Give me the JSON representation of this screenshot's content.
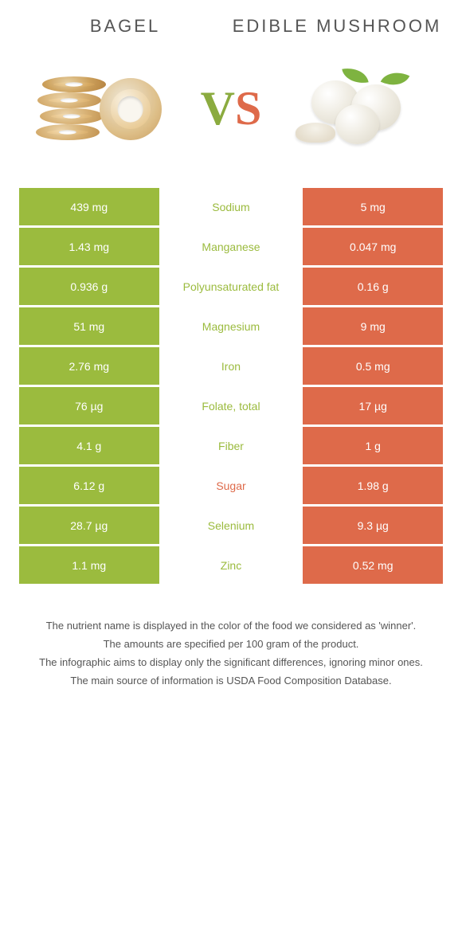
{
  "colors": {
    "left": "#9bbb3e",
    "right": "#de6a4a",
    "background": "#ffffff",
    "text": "#555555"
  },
  "header": {
    "left_title": "Bagel",
    "right_title": "Edible Mushroom",
    "vs_v": "V",
    "vs_s": "S"
  },
  "table": {
    "type": "comparison-table",
    "rows": [
      {
        "left": "439 mg",
        "label": "Sodium",
        "right": "5 mg",
        "winner": "left"
      },
      {
        "left": "1.43 mg",
        "label": "Manganese",
        "right": "0.047 mg",
        "winner": "left"
      },
      {
        "left": "0.936 g",
        "label": "Polyunsaturated fat",
        "right": "0.16 g",
        "winner": "left"
      },
      {
        "left": "51 mg",
        "label": "Magnesium",
        "right": "9 mg",
        "winner": "left"
      },
      {
        "left": "2.76 mg",
        "label": "Iron",
        "right": "0.5 mg",
        "winner": "left"
      },
      {
        "left": "76 µg",
        "label": "Folate, total",
        "right": "17 µg",
        "winner": "left"
      },
      {
        "left": "4.1 g",
        "label": "Fiber",
        "right": "1 g",
        "winner": "left"
      },
      {
        "left": "6.12 g",
        "label": "Sugar",
        "right": "1.98 g",
        "winner": "right"
      },
      {
        "left": "28.7 µg",
        "label": "Selenium",
        "right": "9.3 µg",
        "winner": "left"
      },
      {
        "left": "1.1 mg",
        "label": "Zinc",
        "right": "0.52 mg",
        "winner": "left"
      }
    ]
  },
  "footer": {
    "lines": [
      "The nutrient name is displayed in the color of the food we considered as 'winner'.",
      "The amounts are specified per 100 gram of the product.",
      "The infographic aims to display only the significant differences, ignoring minor ones.",
      "The main source of information is USDA Food Composition Database."
    ]
  }
}
